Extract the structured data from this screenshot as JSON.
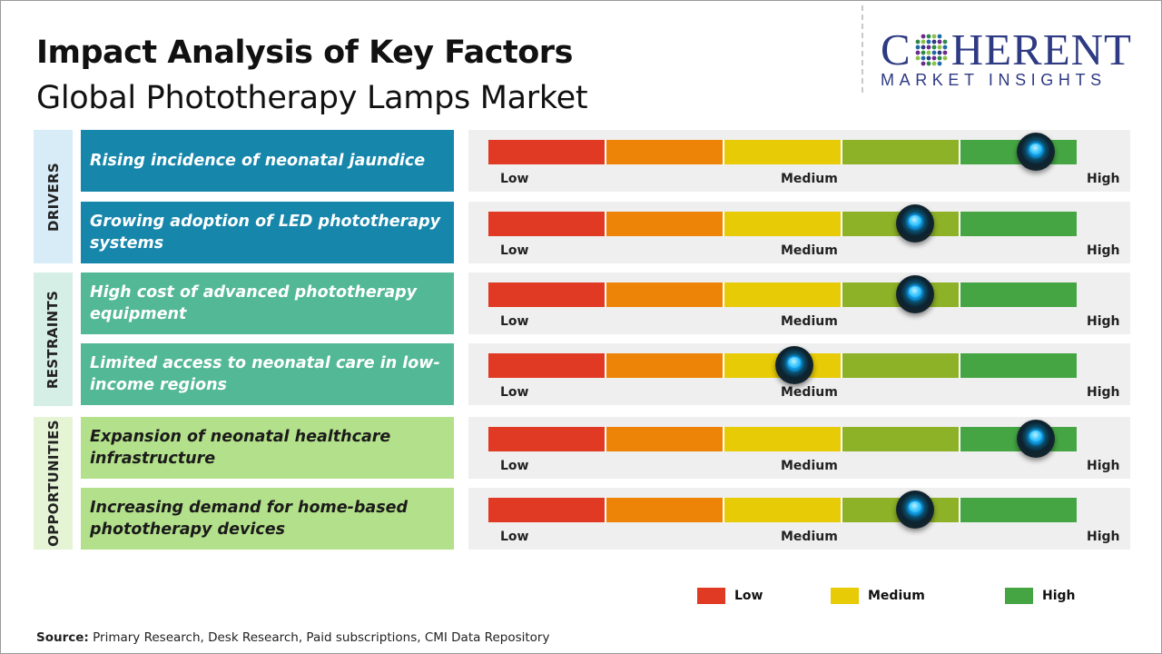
{
  "header": {
    "title": "Impact Analysis of Key Factors",
    "subtitle": "Global Phototherapy Lamps Market"
  },
  "logo": {
    "brand_c": "C",
    "brand_rest": "HERENT",
    "tagline": "MARKET INSIGHTS"
  },
  "scale_labels": {
    "low": "Low",
    "medium": "Medium",
    "high": "High"
  },
  "colors": {
    "segments": [
      "#e13a24",
      "#ee8407",
      "#e6cb06",
      "#8db127",
      "#45a543"
    ],
    "drivers_cat_bg": "#d7ecf7",
    "drivers_factor_bg": "#1686ab",
    "restraints_cat_bg": "#d5efe6",
    "restraints_factor_bg": "#52b896",
    "opportunities_cat_bg": "#e4f4d5",
    "opportunities_factor_bg": "#b3e08a"
  },
  "categories": [
    {
      "label": "DRIVERS"
    },
    {
      "label": "RESTRAINTS"
    },
    {
      "label": "OPPORTUNITIES"
    }
  ],
  "chart_data": {
    "type": "gauge",
    "scale": [
      "Low",
      "Medium",
      "High"
    ],
    "factors": [
      {
        "category": "DRIVERS",
        "label": "Rising incidence of neonatal jaundice",
        "impact": 0.93
      },
      {
        "category": "DRIVERS",
        "label": "Growing adoption of LED phototherapy systems",
        "impact": 0.725
      },
      {
        "category": "RESTRAINTS",
        "label": "High cost of advanced phototherapy equipment",
        "impact": 0.725
      },
      {
        "category": "RESTRAINTS",
        "label": "Limited access to neonatal care in low-income regions",
        "impact": 0.52
      },
      {
        "category": "OPPORTUNITIES",
        "label": "Expansion of neonatal healthcare infrastructure",
        "impact": 0.93
      },
      {
        "category": "OPPORTUNITIES",
        "label": "Increasing demand for home-based phototherapy devices",
        "impact": 0.725
      }
    ]
  },
  "legend": [
    {
      "label": "Low",
      "color": "#e13a24"
    },
    {
      "label": "Medium",
      "color": "#e6cb06"
    },
    {
      "label": "High",
      "color": "#45a543"
    }
  ],
  "source": {
    "label": "Source:",
    "text": " Primary Research, Desk Research, Paid subscriptions, CMI Data Repository"
  }
}
